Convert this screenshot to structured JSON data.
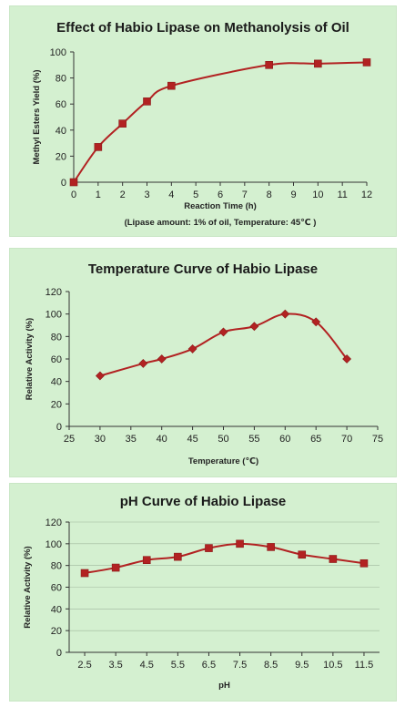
{
  "chart_data": [
    {
      "type": "line",
      "title": "Effect of Habio Lipase on Methanolysis of Oil",
      "xlabel": "Reaction Time (h)",
      "ylabel": "Methyl Esters Yield (%)",
      "annotation": "(Lipase amount: 1% of oil, Temperature: 45℃ )",
      "xlim": [
        0,
        12
      ],
      "ylim": [
        0,
        100
      ],
      "xticks": [
        "0",
        "1",
        "2",
        "3",
        "4",
        "5",
        "6",
        "7",
        "8",
        "9",
        "10",
        "11",
        "12"
      ],
      "yticks": [
        "0",
        "20",
        "40",
        "60",
        "80",
        "100"
      ],
      "grid": false,
      "marker": "square",
      "color": "#b22222",
      "series": [
        {
          "x": [
            0,
            1,
            2,
            3,
            4,
            8,
            10,
            12
          ],
          "y": [
            0,
            27,
            45,
            62,
            74,
            90,
            91,
            92
          ]
        }
      ]
    },
    {
      "type": "line",
      "title": "Temperature Curve of Habio Lipase",
      "xlabel": "Temperature (℃)",
      "ylabel": "Relative Activity (%)",
      "xlim": [
        25,
        75
      ],
      "ylim": [
        0,
        120
      ],
      "xticks": [
        "25",
        "30",
        "35",
        "40",
        "45",
        "50",
        "55",
        "60",
        "65",
        "70",
        "75"
      ],
      "yticks": [
        "0",
        "20",
        "40",
        "60",
        "80",
        "100",
        "120"
      ],
      "grid": false,
      "marker": "diamond",
      "color": "#b22222",
      "series": [
        {
          "x": [
            30,
            37,
            40,
            45,
            50,
            55,
            60,
            65,
            70
          ],
          "y": [
            45,
            56,
            60,
            69,
            84,
            89,
            100,
            93,
            60
          ]
        }
      ]
    },
    {
      "type": "line",
      "title": "pH Curve of  Habio Lipase",
      "xlabel": "pH",
      "ylabel": "Relative Activity (%)",
      "ylim": [
        0,
        120
      ],
      "categories": [
        "2.5",
        "3.5",
        "4.5",
        "5.5",
        "6.5",
        "7.5",
        "8.5",
        "9.5",
        "10.5",
        "11.5"
      ],
      "yticks": [
        "0",
        "20",
        "40",
        "60",
        "80",
        "100",
        "120"
      ],
      "grid": true,
      "marker": "square",
      "color": "#b22222",
      "series": [
        {
          "values": [
            73,
            78,
            85,
            88,
            96,
            100,
            97,
            90,
            86,
            82
          ]
        }
      ]
    }
  ]
}
